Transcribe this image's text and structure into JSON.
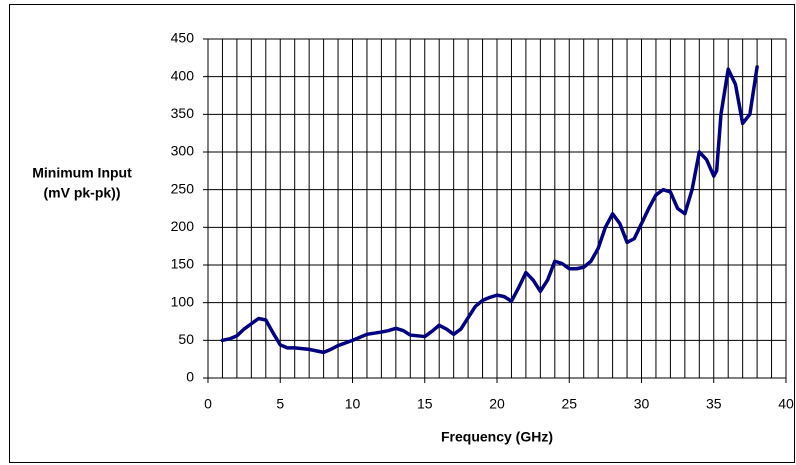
{
  "chart_data": {
    "type": "line",
    "ylabel": [
      "Minimum Input",
      "(mV pk-pk))"
    ],
    "xlabel": "Frequency (GHz)",
    "x": [
      1,
      1.5,
      2,
      2.5,
      3,
      3.5,
      4,
      4.5,
      5,
      5.5,
      6,
      7,
      7.5,
      8,
      8.5,
      9,
      10,
      11,
      12,
      12.5,
      13,
      13.5,
      14,
      15,
      15.5,
      16,
      16.5,
      17,
      17.5,
      18,
      18.5,
      19,
      19.5,
      20,
      20.5,
      21,
      21.5,
      22,
      22.5,
      23,
      23.5,
      24,
      24.5,
      25,
      25.5,
      26,
      26.5,
      27,
      27.5,
      28,
      28.5,
      29,
      29.5,
      30,
      30.5,
      31,
      31.5,
      32,
      32.5,
      33,
      33.5,
      34,
      34.5,
      35,
      35.2,
      35.5,
      36,
      36.5,
      37,
      37.5,
      38
    ],
    "series": [
      {
        "name": "Minimum Input",
        "color": "#000080",
        "values": [
          50,
          52,
          56,
          65,
          72,
          79,
          77,
          60,
          44,
          40,
          40,
          38,
          36,
          34,
          38,
          43,
          50,
          58,
          61,
          63,
          66,
          63,
          57,
          55,
          62,
          70,
          65,
          58,
          65,
          80,
          95,
          103,
          107,
          110,
          108,
          102,
          120,
          140,
          130,
          115,
          130,
          155,
          152,
          145,
          145,
          147,
          155,
          172,
          200,
          218,
          205,
          180,
          185,
          205,
          225,
          243,
          250,
          247,
          225,
          218,
          250,
          300,
          290,
          268,
          275,
          350,
          410,
          390,
          338,
          350,
          413
        ]
      }
    ],
    "xlim": [
      0,
      40
    ],
    "xticks": [
      0,
      5,
      10,
      15,
      20,
      25,
      30,
      35,
      40
    ],
    "xgrid": [
      0,
      1,
      2,
      3,
      4,
      5,
      6,
      7,
      8,
      9,
      10,
      11,
      12,
      13,
      14,
      15,
      16,
      17,
      18,
      19,
      20,
      21,
      22,
      23,
      24,
      25,
      26,
      27,
      28,
      29,
      30,
      31,
      32,
      33,
      34,
      35,
      36,
      37,
      38,
      39,
      40
    ],
    "ylim": [
      0,
      450
    ],
    "yticks": [
      0,
      50,
      100,
      150,
      200,
      250,
      300,
      350,
      400,
      450
    ],
    "grid": true
  }
}
